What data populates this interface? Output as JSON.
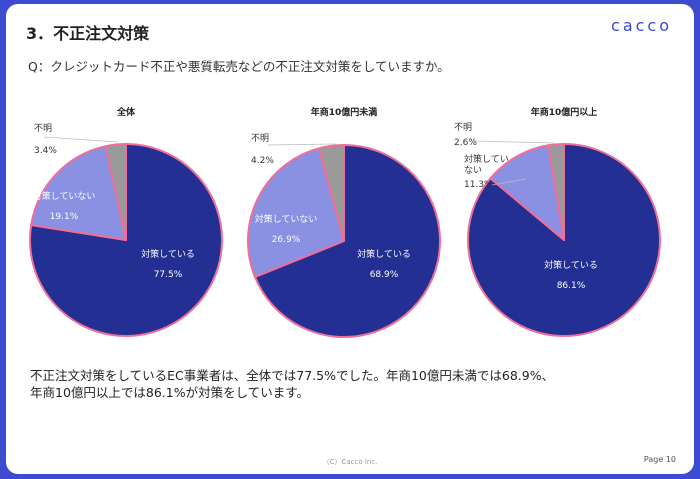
{
  "header": {
    "title": "3．不正注文対策",
    "logo": "cacco"
  },
  "question": "Q：クレジットカード不正や悪質転売などの不正注文対策をしていますか。",
  "summary": {
    "line1": "不正注文対策をしているEC事業者は、全体では77.5%でした。年商10億円未満では68.9%、",
    "line2": "年商10億円以上では86.1%が対策をしています。"
  },
  "footer": {
    "copyright": "（C）Cacco Inc.",
    "page": "Page 10"
  },
  "colors": {
    "implemented": "#232f93",
    "not_implemented": "#8a90e2",
    "unknown": "#9a9a9a",
    "border": "#f06e98",
    "brand": "#3a48d6"
  },
  "chart_data": [
    {
      "type": "pie",
      "title": "全体",
      "slices": [
        {
          "label": "対策している",
          "value": 77.5,
          "value_label": "77.5%"
        },
        {
          "label": "対策していない",
          "value": 19.1,
          "value_label": "19.1%"
        },
        {
          "label": "不明",
          "value": 3.4,
          "value_label": "3.4%"
        }
      ]
    },
    {
      "type": "pie",
      "title": "年商10億円未満",
      "slices": [
        {
          "label": "対策している",
          "value": 68.9,
          "value_label": "68.9%"
        },
        {
          "label": "対策していない",
          "value": 26.9,
          "value_label": "26.9%"
        },
        {
          "label": "不明",
          "value": 4.2,
          "value_label": "4.2%"
        }
      ]
    },
    {
      "type": "pie",
      "title": "年商10億円以上",
      "slices": [
        {
          "label": "対策している",
          "value": 86.1,
          "value_label": "86.1%"
        },
        {
          "label": "対策していない",
          "value": 11.3,
          "value_label": "11.3%",
          "label_lines": [
            "対策してい",
            "ない"
          ]
        },
        {
          "label": "不明",
          "value": 2.6,
          "value_label": "2.6%"
        }
      ]
    }
  ]
}
